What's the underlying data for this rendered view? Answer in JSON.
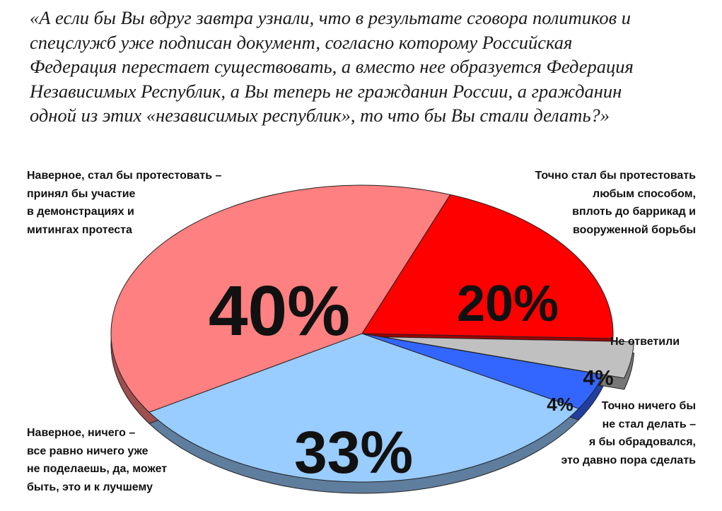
{
  "question_lines": [
    "«А если бы Вы вдруг завтра узнали, что в результате сговора политиков и",
    "спецслужб уже подписан документ, согласно которому Российская",
    "Федерация перестает существовать, а вместо нее образуется Федерация",
    "Независимых Республик, а Вы теперь не гражданин России, а гражданин",
    "одной из этих «независимых республик», то что бы Вы стали делать?»"
  ],
  "chart_data": {
    "type": "pie",
    "style": "3d-exploded",
    "slices": [
      {
        "label_lines": [
          "Наверное, стал бы протестовать –",
          "принял бы участие",
          "в демонстрациях и",
          "митингах протеста"
        ],
        "value": 40,
        "value_label": "40%",
        "color": "#ff8080"
      },
      {
        "label_lines": [
          "Точно стал бы протестовать",
          "любым способом,",
          "вплоть до баррикад и",
          "вооруженной борьбы"
        ],
        "value": 20,
        "value_label": "20%",
        "color": "#ff0000"
      },
      {
        "label_lines": [
          "Не ответили"
        ],
        "value": 4,
        "value_label": "4%",
        "color": "#c0c0c0"
      },
      {
        "label_lines": [
          "Точно ничего бы",
          "не стал делать –",
          "я бы обрадовался,",
          "это давно пора сделать"
        ],
        "value": 4,
        "value_label": "4%",
        "color": "#3366ff"
      },
      {
        "label_lines": [
          "Наверное, ничего –",
          "все равно ничего уже",
          "не поделаешь, да, может",
          "быть, это и к лучшему"
        ],
        "value": 33,
        "value_label": "33%",
        "color": "#99ccff"
      }
    ]
  }
}
